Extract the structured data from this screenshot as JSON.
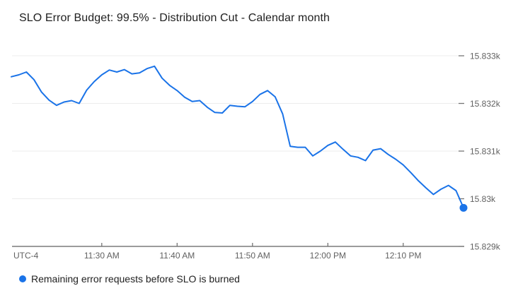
{
  "header": {
    "title": "SLO Error Budget: 99.5% - Distribution Cut - Calendar month"
  },
  "legend": {
    "label": "Remaining error requests before SLO is burned",
    "color": "#1a73e8"
  },
  "colors": {
    "series_line": "#1a73e8",
    "end_marker": "#1a73e8",
    "gridline": "#ececec",
    "axis_line": "#616161",
    "tick_mark": "#757575",
    "tick_label": "#616161",
    "title_text": "#212121",
    "background": "#ffffff"
  },
  "chart_data": {
    "type": "line",
    "title": "SLO Error Budget: 99.5% - Distribution Cut - Calendar month",
    "xlabel": "",
    "ylabel": "",
    "timezone_label": "UTC-4",
    "grid": true,
    "legend_position": "bottom-left",
    "last_point_marker": true,
    "ylim": [
      15829,
      15833
    ],
    "y_ticks": [
      {
        "value": 15833,
        "label": "15.833k"
      },
      {
        "value": 15832,
        "label": "15.832k"
      },
      {
        "value": 15831,
        "label": "15.831k"
      },
      {
        "value": 15830,
        "label": "15.83k"
      },
      {
        "value": 15829,
        "label": "15.829k"
      }
    ],
    "x_tick_labels": [
      "11:30 AM",
      "11:40 AM",
      "11:50 AM",
      "12:00 PM",
      "12:10 PM"
    ],
    "x": [
      "11:18 AM",
      "11:19 AM",
      "11:20 AM",
      "11:21 AM",
      "11:22 AM",
      "11:23 AM",
      "11:24 AM",
      "11:25 AM",
      "11:26 AM",
      "11:27 AM",
      "11:28 AM",
      "11:29 AM",
      "11:30 AM",
      "11:31 AM",
      "11:32 AM",
      "11:33 AM",
      "11:34 AM",
      "11:35 AM",
      "11:36 AM",
      "11:37 AM",
      "11:38 AM",
      "11:39 AM",
      "11:40 AM",
      "11:41 AM",
      "11:42 AM",
      "11:43 AM",
      "11:44 AM",
      "11:45 AM",
      "11:46 AM",
      "11:47 AM",
      "11:48 AM",
      "11:49 AM",
      "11:50 AM",
      "11:51 AM",
      "11:52 AM",
      "11:53 AM",
      "11:54 AM",
      "11:55 AM",
      "11:56 AM",
      "11:57 AM",
      "11:58 AM",
      "11:59 AM",
      "12:00 PM",
      "12:01 PM",
      "12:02 PM",
      "12:03 PM",
      "12:04 PM",
      "12:05 PM",
      "12:06 PM",
      "12:07 PM",
      "12:08 PM",
      "12:09 PM",
      "12:10 PM",
      "12:11 PM",
      "12:12 PM",
      "12:13 PM",
      "12:14 PM",
      "12:15 PM",
      "12:16 PM",
      "12:17 PM",
      "12:18 PM"
    ],
    "series": [
      {
        "name": "Remaining error requests before SLO is burned",
        "color": "#1a73e8",
        "values": [
          15832.56,
          15832.6,
          15832.66,
          15832.5,
          15832.24,
          15832.07,
          15831.96,
          15832.03,
          15832.06,
          15832.0,
          15832.28,
          15832.46,
          15832.6,
          15832.7,
          15832.66,
          15832.71,
          15832.62,
          15832.64,
          15832.73,
          15832.78,
          15832.53,
          15832.38,
          15832.27,
          15832.13,
          15832.04,
          15832.06,
          15831.92,
          15831.81,
          15831.8,
          15831.96,
          15831.94,
          15831.93,
          15832.04,
          15832.19,
          15832.27,
          15832.14,
          15831.78,
          15831.1,
          15831.08,
          15831.08,
          15830.9,
          15831.0,
          15831.12,
          15831.19,
          15831.04,
          15830.9,
          15830.87,
          15830.8,
          15831.02,
          15831.05,
          15830.93,
          15830.83,
          15830.71,
          15830.55,
          15830.38,
          15830.23,
          15830.09,
          15830.2,
          15830.28,
          15830.17,
          15829.81
        ]
      }
    ]
  }
}
